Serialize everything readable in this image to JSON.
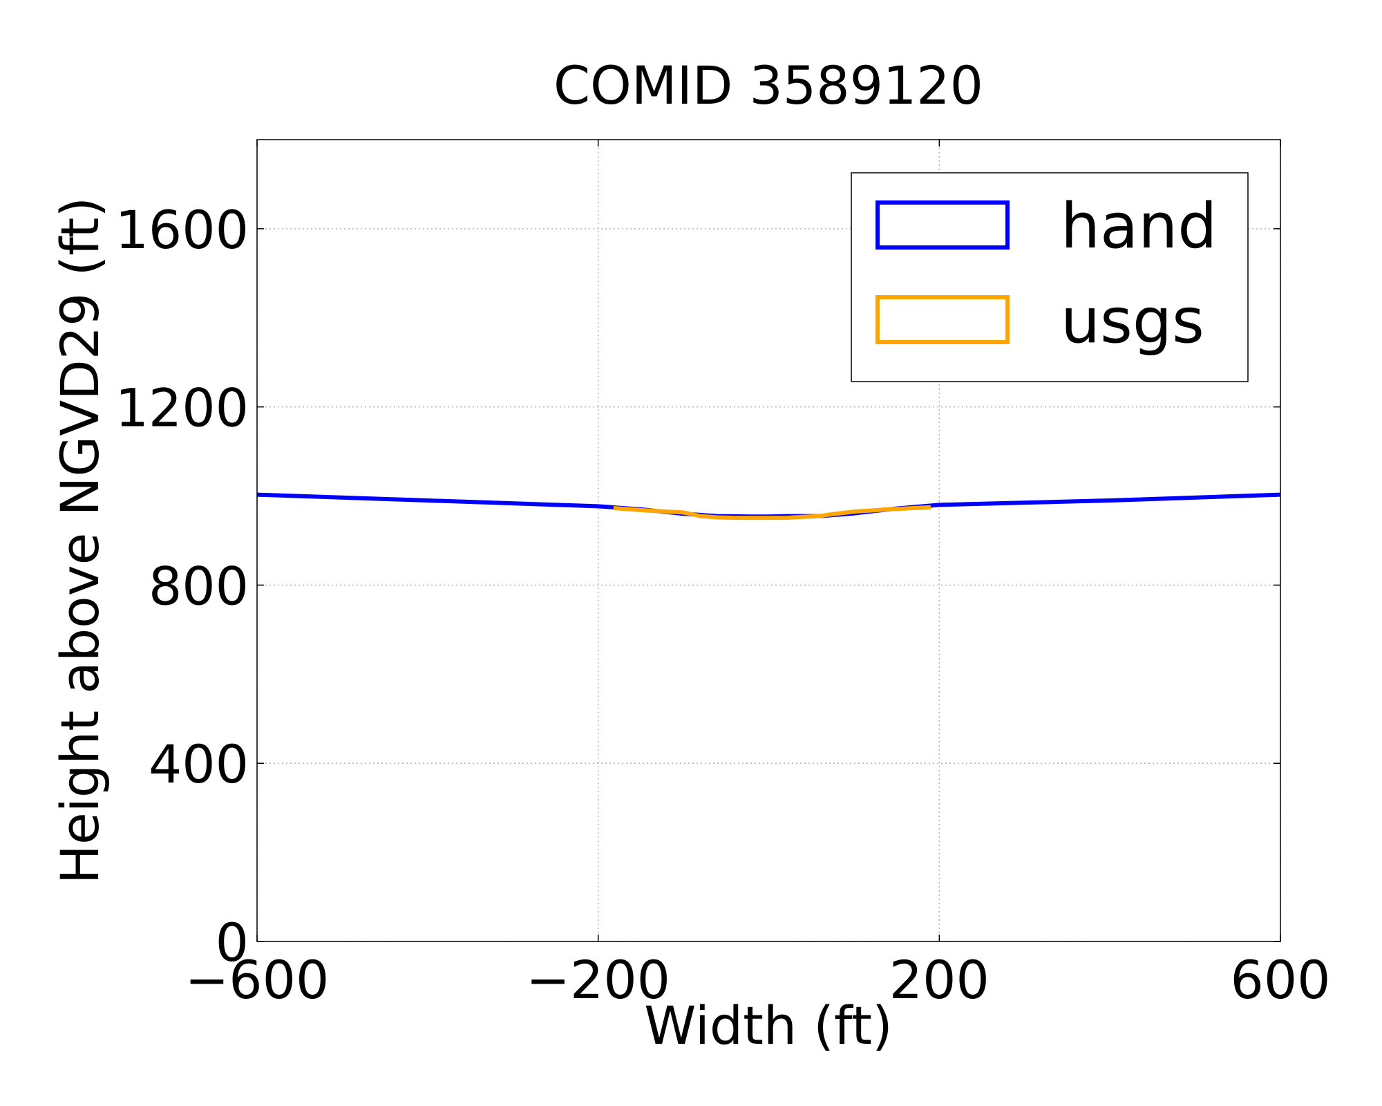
{
  "chart_data": {
    "type": "line",
    "title": "COMID 3589120",
    "xlabel": "Width (ft)",
    "ylabel": "Height above NGVD29 (ft)",
    "xlim": [
      -600,
      600
    ],
    "ylim": [
      0,
      1800
    ],
    "xticks": [
      -600,
      -200,
      200,
      600
    ],
    "xtick_labels": [
      "−600",
      "−200",
      "200",
      "600"
    ],
    "yticks": [
      0,
      400,
      800,
      1200,
      1600
    ],
    "ytick_labels": [
      "0",
      "400",
      "800",
      "1200",
      "1600"
    ],
    "grid": true,
    "legend_position": "top-right",
    "series": [
      {
        "name": "hand",
        "color": "#0000ff",
        "x": [
          -600,
          -400,
          -200,
          -150,
          -100,
          -60,
          -20,
          0,
          20,
          60,
          100,
          150,
          200,
          400,
          600
        ],
        "y": [
          1003,
          990,
          977,
          970,
          960,
          955,
          954,
          954,
          955,
          955,
          961,
          972,
          980,
          990,
          1003
        ]
      },
      {
        "name": "usgs",
        "color": "#ffa500",
        "x": [
          -182,
          -140,
          -100,
          -80,
          -60,
          -40,
          -20,
          0,
          20,
          40,
          60,
          70,
          100,
          140,
          190
        ],
        "y": [
          973,
          967,
          963,
          955,
          952,
          951,
          951,
          951,
          951,
          953,
          955,
          958,
          965,
          970,
          975
        ]
      }
    ]
  }
}
